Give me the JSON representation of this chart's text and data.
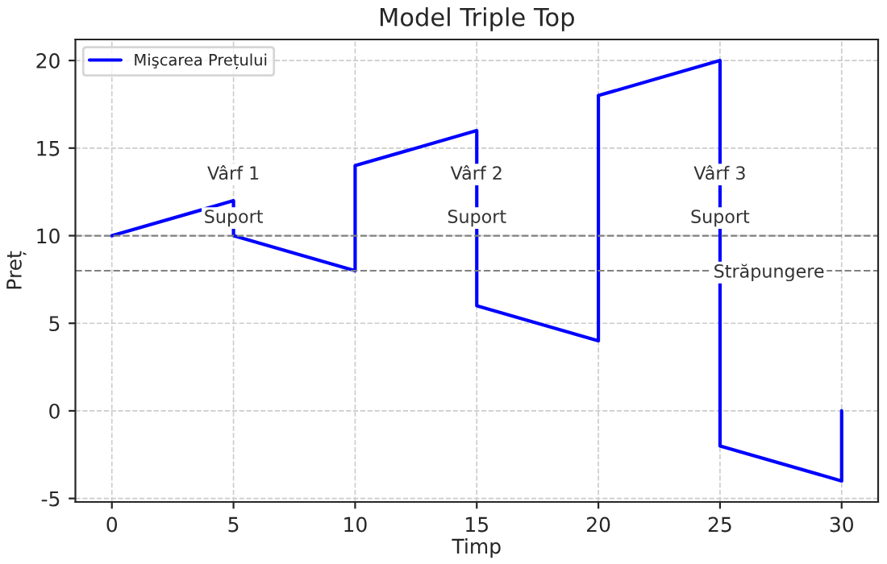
{
  "chart_data": {
    "type": "line",
    "title": "Model Triple Top",
    "xlabel": "Timp",
    "ylabel": "Preț",
    "series": [
      {
        "name": "Mişcarea Prețului",
        "color": "#0000ff",
        "x": [
          0,
          5,
          5,
          10,
          10,
          15,
          15,
          20,
          20,
          25,
          25,
          30,
          30
        ],
        "values": [
          10,
          12,
          10,
          8,
          14,
          16,
          6,
          4,
          18,
          20,
          -2,
          -4,
          0
        ]
      }
    ],
    "xlim": [
      -1.5,
      31.5
    ],
    "ylim": [
      -5.2,
      21.2
    ],
    "xticks": [
      0,
      5,
      10,
      15,
      20,
      25,
      30
    ],
    "yticks": [
      -5,
      0,
      5,
      10,
      15,
      20
    ],
    "ref_lines": [
      {
        "axis": "y",
        "value": 10,
        "color": "#808080",
        "line_style": "dashed"
      },
      {
        "axis": "y",
        "value": 8,
        "color": "#808080",
        "line_style": "dashed"
      }
    ],
    "annotations": [
      "Vârf 1",
      "Suport",
      "Vârf 2",
      "Suport",
      "Vârf 3",
      "Suport",
      "Străpungere"
    ],
    "grid": true,
    "legend": "top left",
    "marker": "none",
    "line_style": "solid"
  }
}
